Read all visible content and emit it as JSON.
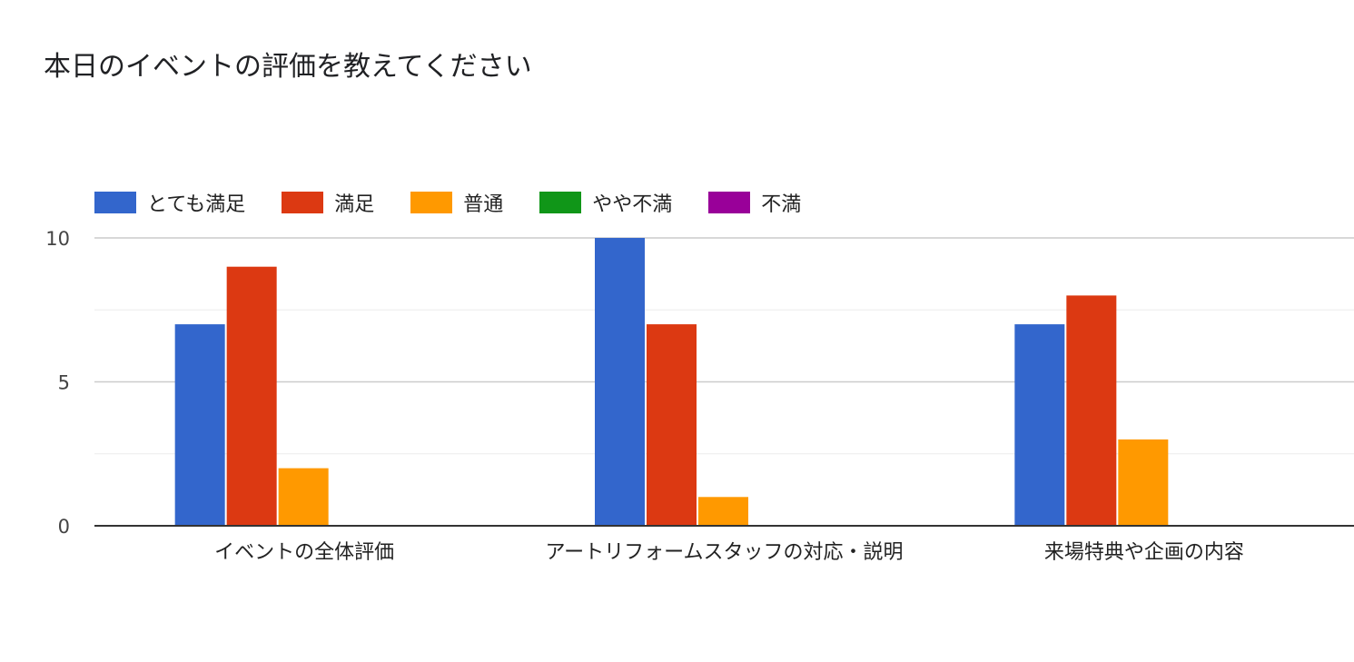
{
  "chart_data": {
    "type": "bar",
    "title": "本日のイベントの評価を教えてください",
    "categories": [
      "イベントの全体評価",
      "アートリフォームスタッフの対応・説明",
      "来場特典や企画の内容"
    ],
    "series": [
      {
        "name": "とても満足",
        "color": "#3366cc",
        "values": [
          7,
          10,
          7
        ]
      },
      {
        "name": "満足",
        "color": "#dc3912",
        "values": [
          9,
          7,
          8
        ]
      },
      {
        "name": "普通",
        "color": "#ff9900",
        "values": [
          2,
          1,
          3
        ]
      },
      {
        "name": "やや不満",
        "color": "#109618",
        "values": [
          0,
          0,
          0
        ]
      },
      {
        "name": "不満",
        "color": "#990099",
        "values": [
          0,
          0,
          0
        ]
      }
    ],
    "yticks": [
      "0",
      "5",
      "10"
    ],
    "ylim": [
      0,
      10
    ],
    "grid": true,
    "legend_position": "top"
  }
}
